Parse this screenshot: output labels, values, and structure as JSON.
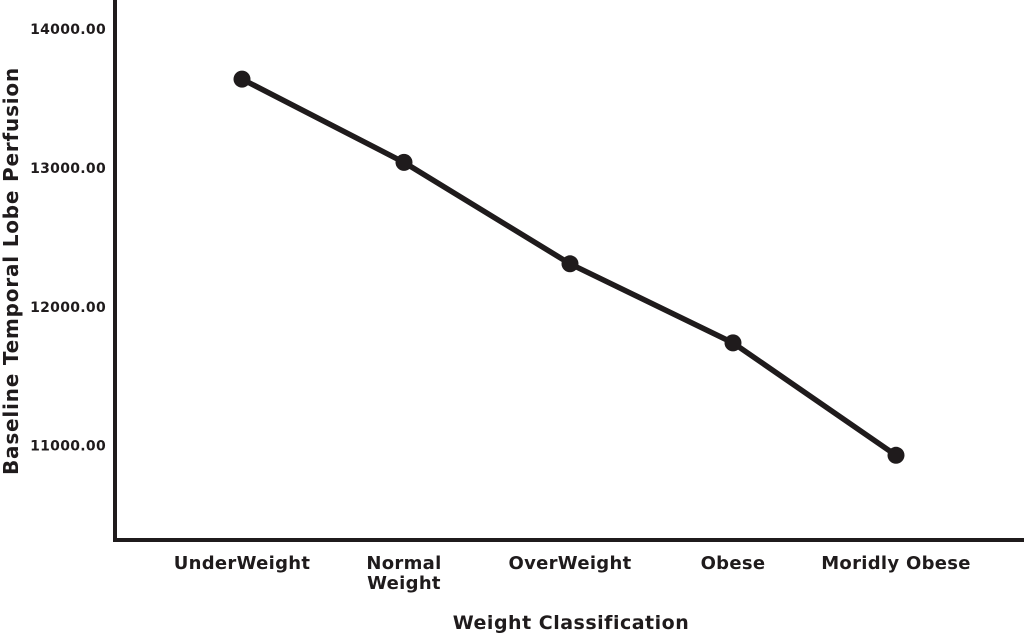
{
  "colors": {
    "ink": "#1f1b1c",
    "background": "#ffffff"
  },
  "chart_data": {
    "type": "line",
    "title": "",
    "xlabel": "Weight Classification",
    "ylabel": "Baseline Temporal Lobe Perfusion",
    "categories": [
      "UnderWeight",
      "Normal Weight",
      "OverWeight",
      "Obese",
      "Moridly Obese"
    ],
    "category_wrap": [
      false,
      true,
      false,
      false,
      false
    ],
    "series": [
      {
        "name": "Baseline Temporal Lobe Perfusion",
        "values": [
          13640,
          13040,
          12310,
          11740,
          10930
        ]
      }
    ],
    "yticks": [
      14000,
      13000,
      12000,
      11000
    ],
    "ytick_labels": [
      "14000.00",
      "13000.00",
      "12000.00",
      "11000.00"
    ],
    "ylim": [
      10320,
      14210
    ],
    "grid": false,
    "legend": "none",
    "marker": "filled-circle",
    "line_color": "#1f1b1c"
  }
}
